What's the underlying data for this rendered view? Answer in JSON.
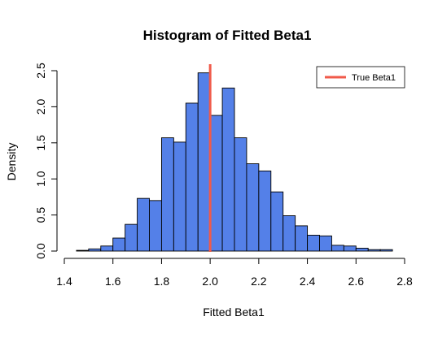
{
  "chart_data": {
    "type": "bar",
    "title": "Histogram of Fitted Beta1",
    "xlabel": "Fitted Beta1",
    "ylabel": "Density",
    "xlim": [
      1.4,
      2.8
    ],
    "ylim": [
      0,
      2.5
    ],
    "x_ticks": [
      "1.4",
      "1.6",
      "1.8",
      "2.0",
      "2.2",
      "2.4",
      "2.6",
      "2.8"
    ],
    "y_ticks": [
      "0.0",
      "0.5",
      "1.0",
      "1.5",
      "2.0",
      "2.5"
    ],
    "bar_color": "#5480e8",
    "bins": [
      {
        "x0": 1.45,
        "x1": 1.5,
        "density": 0.01
      },
      {
        "x0": 1.5,
        "x1": 1.55,
        "density": 0.03
      },
      {
        "x0": 1.55,
        "x1": 1.6,
        "density": 0.07
      },
      {
        "x0": 1.6,
        "x1": 1.65,
        "density": 0.18
      },
      {
        "x0": 1.65,
        "x1": 1.7,
        "density": 0.37
      },
      {
        "x0": 1.7,
        "x1": 1.75,
        "density": 0.73
      },
      {
        "x0": 1.75,
        "x1": 1.8,
        "density": 0.7
      },
      {
        "x0": 1.8,
        "x1": 1.85,
        "density": 1.57
      },
      {
        "x0": 1.85,
        "x1": 1.9,
        "density": 1.51
      },
      {
        "x0": 1.9,
        "x1": 1.95,
        "density": 2.05
      },
      {
        "x0": 1.95,
        "x1": 2.0,
        "density": 2.47
      },
      {
        "x0": 2.0,
        "x1": 2.05,
        "density": 1.88
      },
      {
        "x0": 2.05,
        "x1": 2.1,
        "density": 2.26
      },
      {
        "x0": 2.1,
        "x1": 2.15,
        "density": 1.57
      },
      {
        "x0": 2.15,
        "x1": 2.2,
        "density": 1.21
      },
      {
        "x0": 2.2,
        "x1": 2.25,
        "density": 1.11
      },
      {
        "x0": 2.25,
        "x1": 2.3,
        "density": 0.82
      },
      {
        "x0": 2.3,
        "x1": 2.35,
        "density": 0.49
      },
      {
        "x0": 2.35,
        "x1": 2.4,
        "density": 0.35
      },
      {
        "x0": 2.4,
        "x1": 2.45,
        "density": 0.22
      },
      {
        "x0": 2.45,
        "x1": 2.5,
        "density": 0.21
      },
      {
        "x0": 2.5,
        "x1": 2.55,
        "density": 0.08
      },
      {
        "x0": 2.55,
        "x1": 2.6,
        "density": 0.07
      },
      {
        "x0": 2.6,
        "x1": 2.65,
        "density": 0.04
      },
      {
        "x0": 2.65,
        "x1": 2.7,
        "density": 0.02
      },
      {
        "x0": 2.7,
        "x1": 2.75,
        "density": 0.02
      }
    ],
    "reference_line": {
      "x": 2.0,
      "label": "True Beta1",
      "color": "#f05a4a"
    },
    "legend_position": "top-right",
    "grid": false
  }
}
